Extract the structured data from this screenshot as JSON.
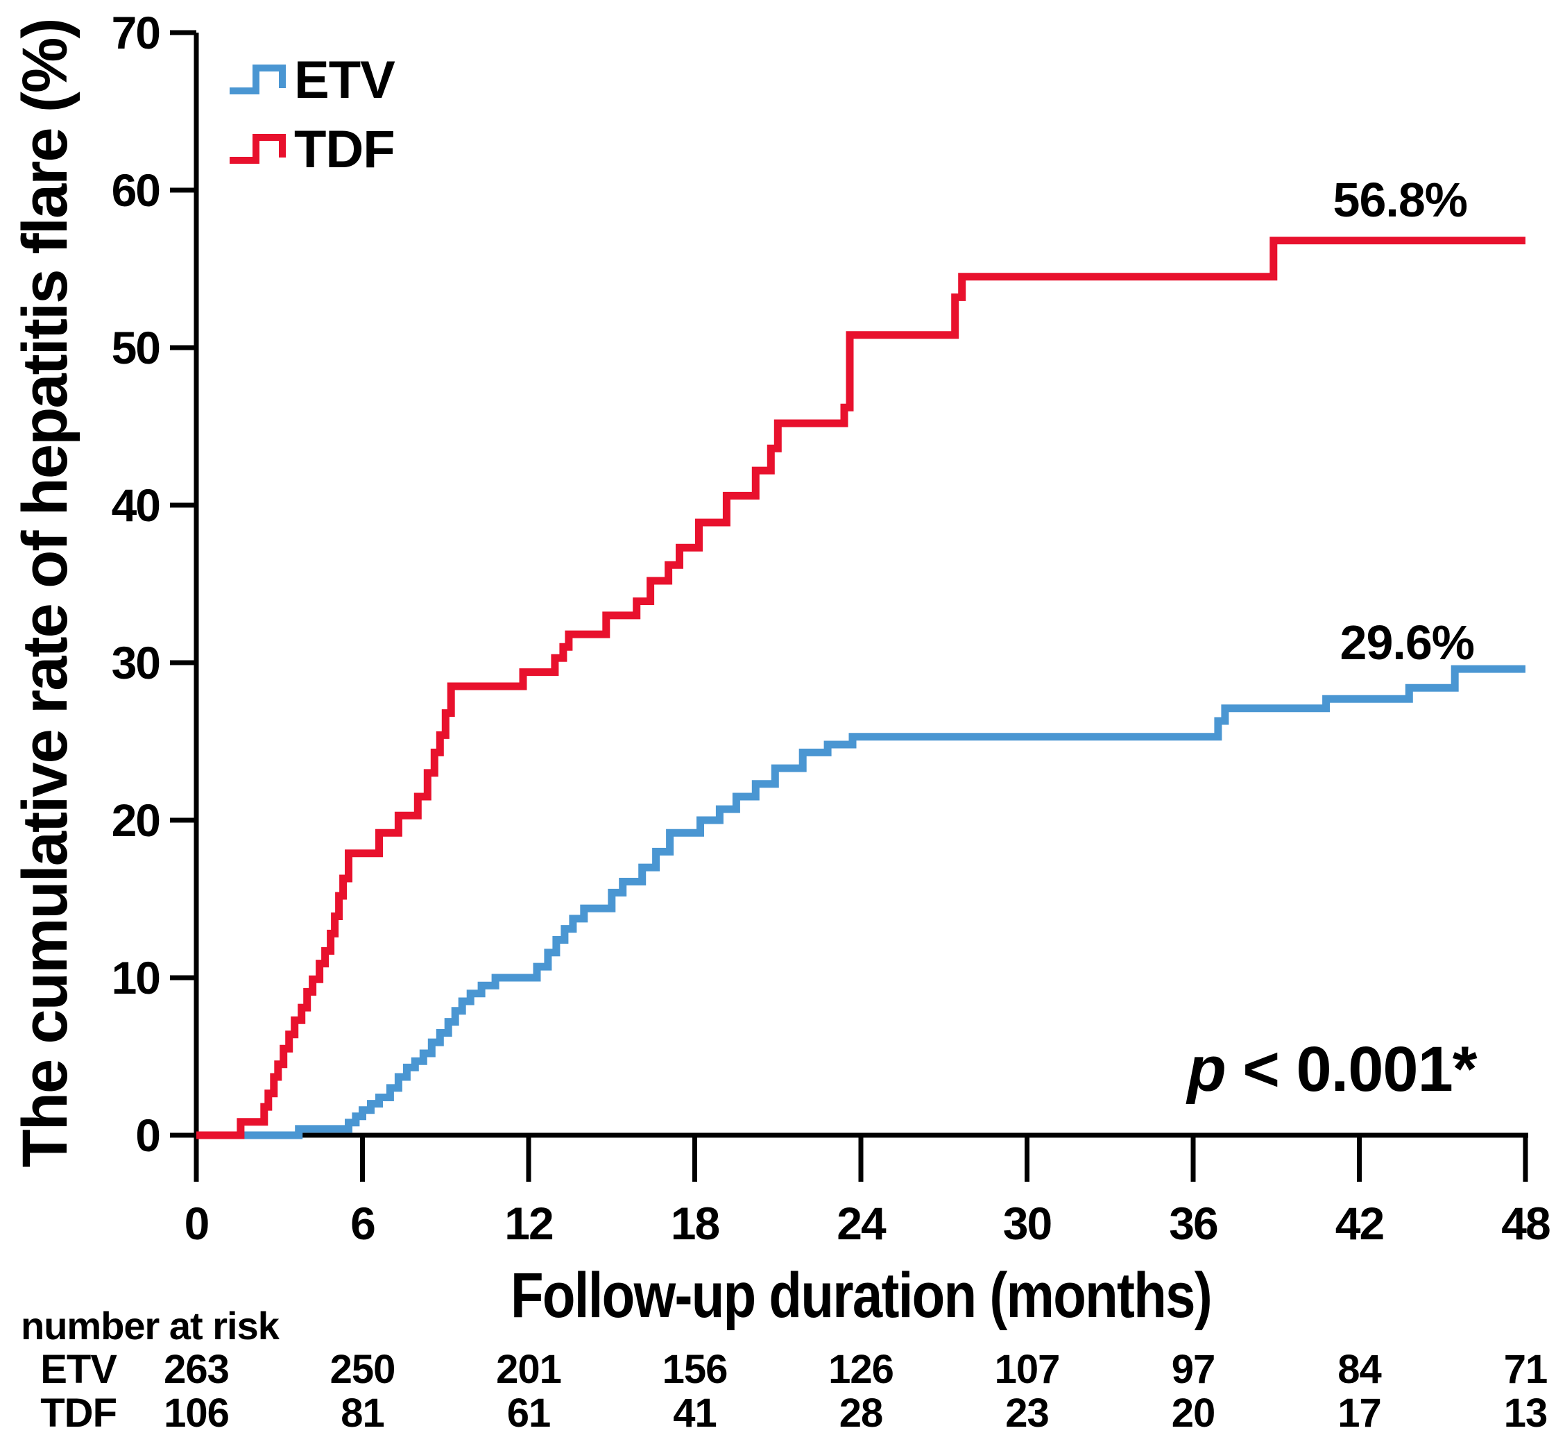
{
  "chart_data": {
    "type": "line",
    "chart_kind": "kaplan-meier cumulative incidence step curves",
    "title": "",
    "xlabel": "Follow-up duration (months)",
    "ylabel": "The cumulative rate of hepatitis flare (%)",
    "xlim": [
      0,
      48
    ],
    "ylim": [
      0,
      70
    ],
    "x_ticks": [
      0,
      6,
      12,
      18,
      24,
      30,
      36,
      42,
      48
    ],
    "y_ticks": [
      0,
      10,
      20,
      30,
      40,
      50,
      60,
      70
    ],
    "grid": false,
    "legend_position": "top-left",
    "annotations": {
      "p_italic": "p",
      "p_rest": " < 0.001*"
    },
    "series": [
      {
        "name": "ETV",
        "color": "#4a96d2",
        "end_label": "29.6%",
        "final_value": 29.6,
        "points_month_percent": [
          [
            0,
            0
          ],
          [
            3.7,
            0.4
          ],
          [
            5.5,
            0.8
          ],
          [
            5.76,
            1.2
          ],
          [
            6.0,
            1.6
          ],
          [
            6.3,
            2.0
          ],
          [
            6.6,
            2.4
          ],
          [
            7.0,
            3.0
          ],
          [
            7.3,
            3.7
          ],
          [
            7.6,
            4.3
          ],
          [
            7.9,
            4.7
          ],
          [
            8.2,
            5.2
          ],
          [
            8.5,
            5.9
          ],
          [
            8.8,
            6.5
          ],
          [
            9.1,
            7.2
          ],
          [
            9.35,
            7.9
          ],
          [
            9.6,
            8.5
          ],
          [
            9.9,
            9.0
          ],
          [
            10.3,
            9.5
          ],
          [
            10.8,
            10.0
          ],
          [
            12.3,
            10.7
          ],
          [
            12.7,
            11.6
          ],
          [
            13.0,
            12.4
          ],
          [
            13.3,
            13.1
          ],
          [
            13.6,
            13.75
          ],
          [
            14.0,
            14.4
          ],
          [
            15.0,
            15.4
          ],
          [
            15.4,
            16.1
          ],
          [
            16.1,
            17.0
          ],
          [
            16.6,
            18.0
          ],
          [
            17.1,
            19.2
          ],
          [
            18.2,
            20.0
          ],
          [
            18.9,
            20.7
          ],
          [
            19.5,
            21.5
          ],
          [
            20.2,
            22.3
          ],
          [
            20.9,
            23.3
          ],
          [
            21.9,
            24.3
          ],
          [
            22.8,
            24.8
          ],
          [
            23.7,
            25.3
          ],
          [
            36.9,
            26.3
          ],
          [
            37.15,
            27.1
          ],
          [
            40.8,
            27.7
          ],
          [
            43.8,
            28.4
          ],
          [
            45.45,
            29.6
          ],
          [
            48,
            29.6
          ]
        ]
      },
      {
        "name": "TDF",
        "color": "#e8112d",
        "end_label": "56.8%",
        "final_value": 56.8,
        "points_month_percent": [
          [
            0,
            0
          ],
          [
            1.6,
            0.85
          ],
          [
            2.45,
            1.8
          ],
          [
            2.6,
            2.65
          ],
          [
            2.8,
            3.7
          ],
          [
            2.95,
            4.5
          ],
          [
            3.15,
            5.5
          ],
          [
            3.35,
            6.4
          ],
          [
            3.55,
            7.3
          ],
          [
            3.8,
            8.1
          ],
          [
            4.0,
            9.1
          ],
          [
            4.2,
            9.9
          ],
          [
            4.45,
            10.9
          ],
          [
            4.65,
            11.7
          ],
          [
            4.85,
            12.8
          ],
          [
            5.0,
            13.9
          ],
          [
            5.15,
            15.2
          ],
          [
            5.3,
            16.3
          ],
          [
            5.5,
            17.9
          ],
          [
            6.6,
            19.2
          ],
          [
            7.3,
            20.3
          ],
          [
            8.0,
            21.5
          ],
          [
            8.35,
            23.0
          ],
          [
            8.6,
            24.3
          ],
          [
            8.8,
            25.4
          ],
          [
            9.0,
            26.8
          ],
          [
            9.2,
            28.5
          ],
          [
            11.8,
            29.4
          ],
          [
            12.95,
            30.3
          ],
          [
            13.25,
            31.0
          ],
          [
            13.45,
            31.8
          ],
          [
            14.8,
            33.0
          ],
          [
            15.9,
            33.9
          ],
          [
            16.4,
            35.2
          ],
          [
            17.05,
            36.2
          ],
          [
            17.45,
            37.3
          ],
          [
            18.15,
            38.9
          ],
          [
            19.15,
            40.6
          ],
          [
            20.2,
            42.2
          ],
          [
            20.75,
            43.6
          ],
          [
            21.0,
            45.2
          ],
          [
            23.4,
            46.2
          ],
          [
            23.6,
            50.8
          ],
          [
            27.4,
            53.2
          ],
          [
            27.65,
            54.5
          ],
          [
            38.9,
            56.8
          ],
          [
            48,
            56.8
          ]
        ]
      }
    ],
    "number_at_risk": {
      "header": "number at risk",
      "time_points": [
        0,
        6,
        12,
        18,
        24,
        30,
        36,
        42,
        48
      ],
      "rows": [
        {
          "label": "ETV",
          "counts": [
            263,
            250,
            201,
            156,
            126,
            107,
            97,
            84,
            71
          ]
        },
        {
          "label": "TDF",
          "counts": [
            106,
            81,
            61,
            41,
            28,
            23,
            20,
            17,
            13
          ]
        }
      ]
    }
  }
}
